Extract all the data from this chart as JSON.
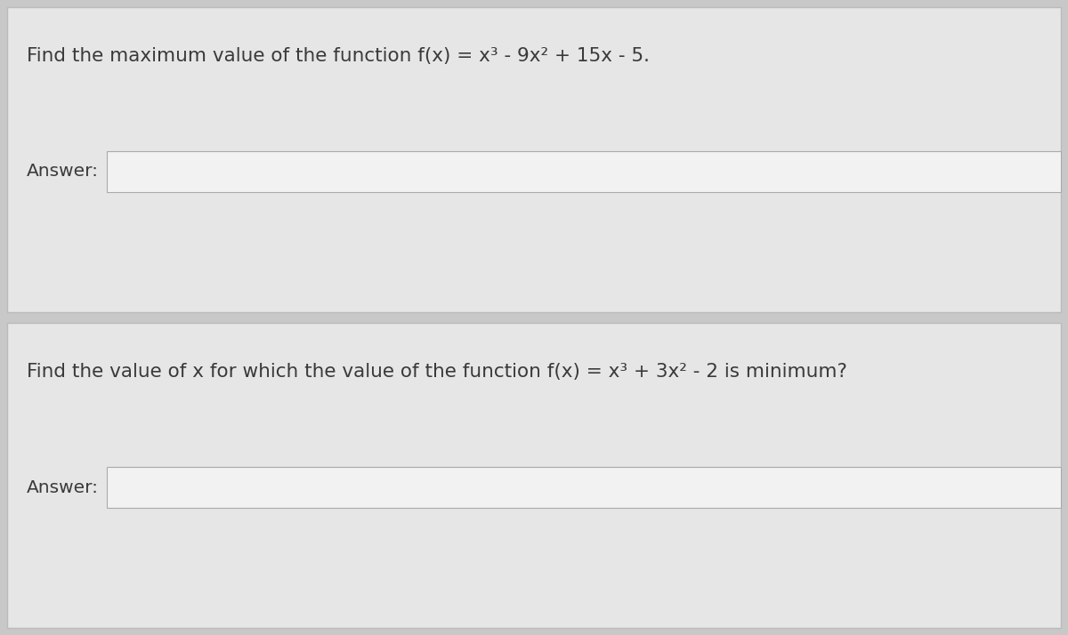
{
  "bg_color": "#c8c8c8",
  "card_bg": "#e6e6e6",
  "card_border": "#bbbbbb",
  "input_bg": "#f2f2f2",
  "input_border": "#aaaaaa",
  "text_color": "#3a3a3a",
  "question1": "Find the maximum value of the function f(x) = x³ - 9x² + 15x - 5.",
  "question2": "Find the value of x for which the value of the function f(x) = x³ + 3x² - 2 is minimum?",
  "answer_label": "Answer:",
  "font_size_question": 15.5,
  "font_size_answer": 14.5,
  "fig_width": 12.0,
  "fig_height": 7.14
}
